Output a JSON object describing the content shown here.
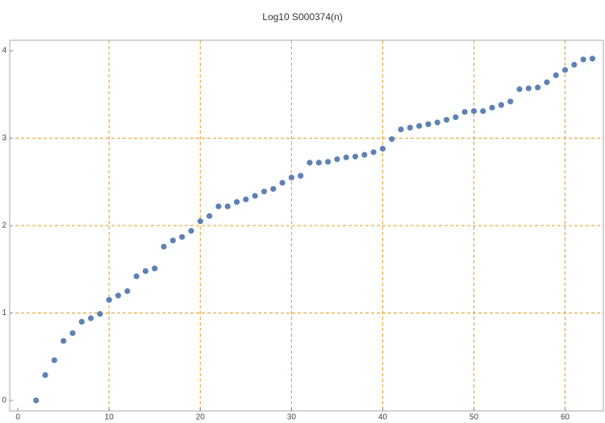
{
  "chart_data": {
    "type": "scatter",
    "title": "Log10 S000374(n)",
    "x": [
      2,
      3,
      4,
      5,
      6,
      7,
      8,
      9,
      10,
      11,
      12,
      13,
      14,
      15,
      16,
      17,
      18,
      19,
      20,
      21,
      22,
      23,
      24,
      25,
      26,
      27,
      28,
      29,
      30,
      31,
      32,
      33,
      34,
      35,
      36,
      37,
      38,
      39,
      40,
      41,
      42,
      43,
      44,
      45,
      46,
      47,
      48,
      49,
      50,
      51,
      52,
      53,
      54,
      55,
      56,
      57,
      58,
      59,
      60,
      61,
      62,
      63
    ],
    "y": [
      0,
      0.29,
      0.46,
      0.68,
      0.77,
      0.9,
      0.94,
      0.99,
      1.15,
      1.2,
      1.25,
      1.42,
      1.48,
      1.51,
      1.76,
      1.83,
      1.87,
      1.94,
      2.05,
      2.11,
      2.22,
      2.22,
      2.27,
      2.3,
      2.34,
      2.39,
      2.42,
      2.49,
      2.55,
      2.57,
      2.72,
      2.72,
      2.73,
      2.76,
      2.78,
      2.79,
      2.81,
      2.84,
      2.88,
      2.99,
      3.1,
      3.12,
      3.14,
      3.16,
      3.18,
      3.21,
      3.24,
      3.3,
      3.31,
      3.31,
      3.35,
      3.38,
      3.42,
      3.56,
      3.57,
      3.58,
      3.64,
      3.72,
      3.78,
      3.84,
      3.9,
      3.91
    ],
    "color": "#5e81b5",
    "xlim": [
      -0.9,
      64.2
    ],
    "ylim": [
      -0.12,
      4.12
    ],
    "xticks": [
      0,
      10,
      20,
      30,
      40,
      50,
      60
    ],
    "yticks": [
      0,
      1,
      2,
      3,
      4
    ],
    "xgrid": [
      10,
      20,
      30,
      40,
      50,
      60
    ],
    "ygrid": [
      1,
      2,
      3
    ],
    "grid_color": "#e69a1e"
  }
}
